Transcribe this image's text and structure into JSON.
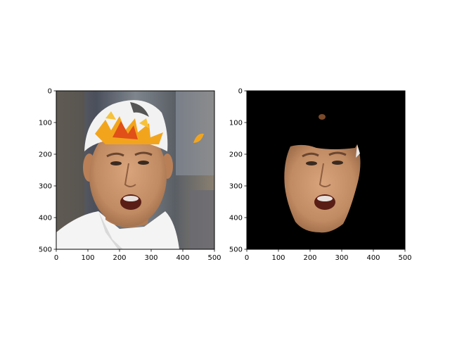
{
  "figure": {
    "panels": [
      {
        "name": "original-image",
        "image_description_tag": "face-photo-with-autumn-leaves",
        "x_ticks": [
          "0",
          "100",
          "200",
          "300",
          "400",
          "500"
        ],
        "y_ticks": [
          "0",
          "100",
          "200",
          "300",
          "400",
          "500"
        ],
        "x_range": [
          0,
          500
        ],
        "y_range": [
          0,
          500
        ]
      },
      {
        "name": "segmented-face",
        "image_description_tag": "face-mask-on-black",
        "x_ticks": [
          "0",
          "100",
          "200",
          "300",
          "400",
          "500"
        ],
        "y_ticks": [
          "0",
          "100",
          "200",
          "300",
          "400",
          "500"
        ],
        "x_range": [
          0,
          500
        ],
        "y_range": [
          0,
          500
        ]
      }
    ],
    "colors": {
      "background": "#ffffff",
      "axis": "#000000",
      "mask_background": "#000000",
      "skin": "#c8926a",
      "leaf_orange": "#f0a020",
      "leaf_red": "#e05018",
      "cap": "#f2f2f2",
      "shirt": "#f4f4f4"
    }
  }
}
